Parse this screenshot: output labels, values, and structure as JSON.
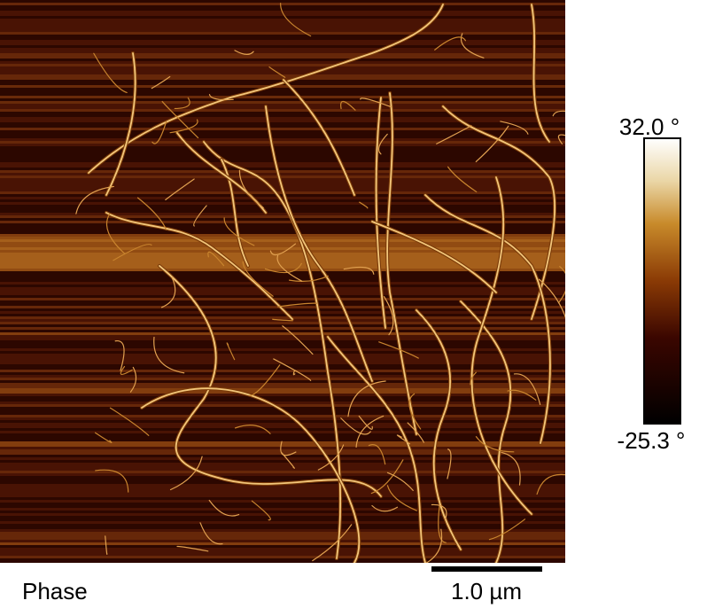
{
  "image_label": "Phase",
  "scale_bar": "1.0 µm",
  "colorbar": {
    "max": "32.0 °",
    "min": "-25.3 °"
  }
}
